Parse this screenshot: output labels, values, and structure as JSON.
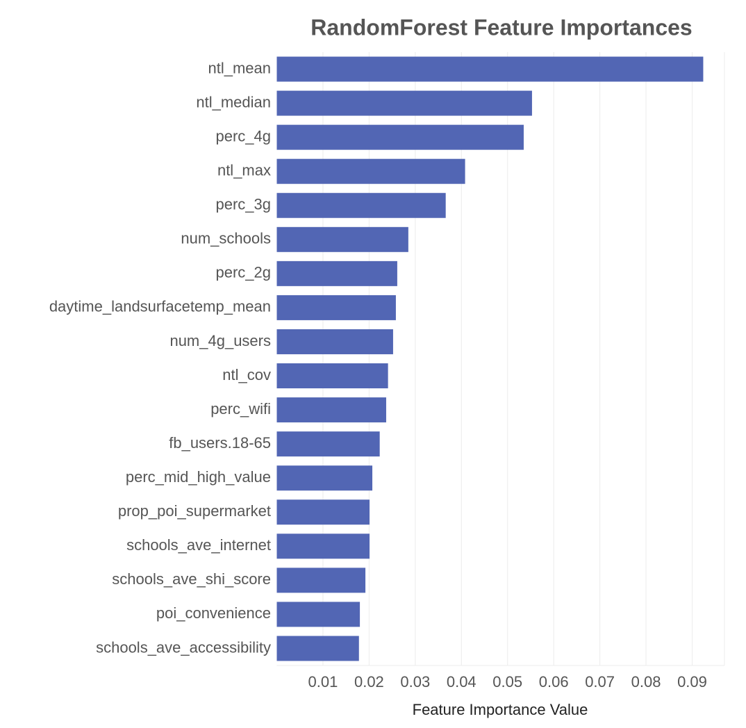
{
  "chart_data": {
    "type": "bar",
    "orientation": "horizontal",
    "title": "RandomForest Feature Importances",
    "x_label": "Feature Importance Value",
    "categories": [
      "ntl_mean",
      "ntl_median",
      "perc_4g",
      "ntl_max",
      "perc_3g",
      "num_schools",
      "perc_2g",
      "daytime_landsurfacetemp_mean",
      "num_4g_users",
      "ntl_cov",
      "perc_wifi",
      "fb_users.18-65",
      "perc_mid_high_value",
      "prop_poi_supermarket",
      "schools_ave_internet",
      "schools_ave_shi_score",
      "poi_convenience",
      "schools_ave_accessibility"
    ],
    "values": [
      0.0924,
      0.0553,
      0.0535,
      0.0408,
      0.0366,
      0.0285,
      0.0261,
      0.0258,
      0.0252,
      0.0241,
      0.0237,
      0.0223,
      0.0207,
      0.0201,
      0.0201,
      0.0192,
      0.018,
      0.0178
    ],
    "color": "#5266b4",
    "xlim": [
      0,
      0.097
    ],
    "xticks": [
      0.01,
      0.02,
      0.03,
      0.04,
      0.05,
      0.06,
      0.07,
      0.08,
      0.09
    ],
    "grid": true
  }
}
